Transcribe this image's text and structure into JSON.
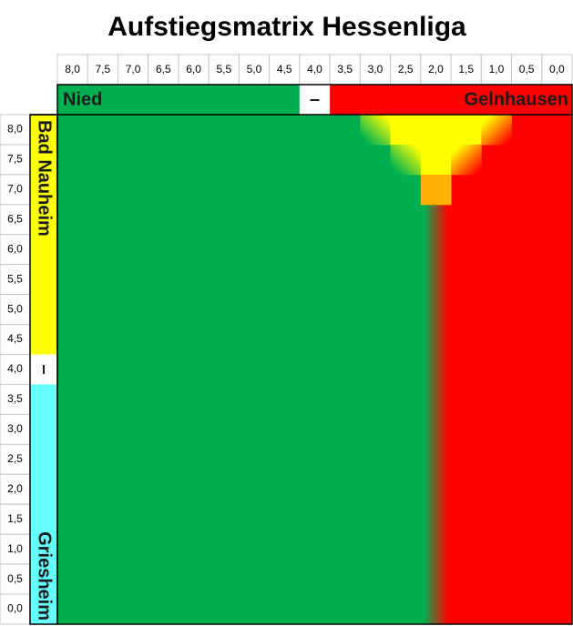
{
  "title": "Aufstiegsmatrix Hessenliga",
  "columns": [
    "8,0",
    "7,5",
    "7,0",
    "6,5",
    "6,0",
    "5,5",
    "5,0",
    "4,5",
    "4,0",
    "3,5",
    "3,0",
    "2,5",
    "2,0",
    "1,5",
    "1,0",
    "0,5",
    "0,0"
  ],
  "rows": [
    "8,0",
    "7,5",
    "7,0",
    "6,5",
    "6,0",
    "5,5",
    "5,0",
    "4,5",
    "4,0",
    "3,5",
    "3,0",
    "2,5",
    "2,0",
    "1,5",
    "1,0",
    "0,5",
    "0,0"
  ],
  "teams": {
    "top_left": "Nied",
    "top_middle": "–",
    "top_right": "Gelnhausen",
    "side_top": "Bad Nauheim",
    "side_middle": "–",
    "side_bottom": "Griesheim"
  }
}
